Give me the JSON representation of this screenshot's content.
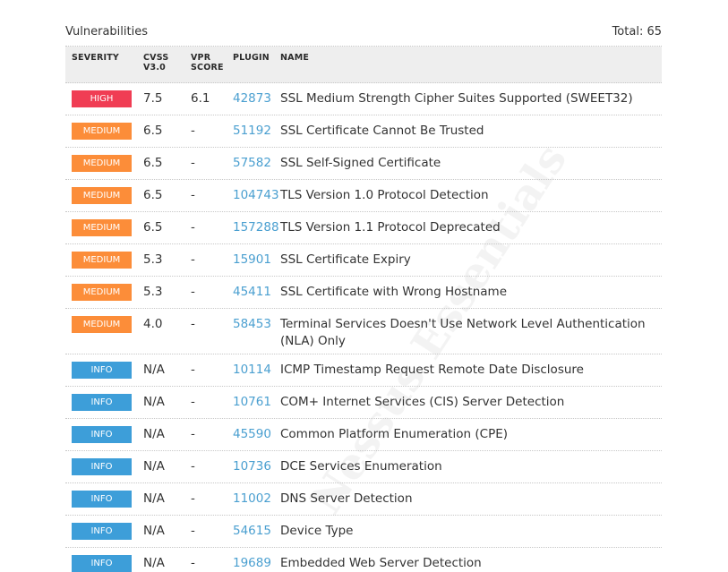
{
  "section": {
    "title": "Vulnerabilities",
    "total": "Total: 65"
  },
  "columns": {
    "severity": "SEVERITY",
    "cvss_l1": "CVSS",
    "cvss_l2": "V3.0",
    "vpr_l1": "VPR",
    "vpr_l2": "SCORE",
    "plugin": "PLUGIN",
    "name": "NAME"
  },
  "watermark": "Nessus Essentials",
  "colors": {
    "high": "#f03d54",
    "medium": "#fc8d39",
    "info": "#3d9ed9",
    "plugin_link": "#4a9fd0"
  },
  "rows": [
    {
      "severity": "HIGH",
      "level": "high",
      "cvss": "7.5",
      "vpr": "6.1",
      "plugin": "42873",
      "name": "SSL Medium Strength Cipher Suites Supported (SWEET32)"
    },
    {
      "severity": "MEDIUM",
      "level": "medium",
      "cvss": "6.5",
      "vpr": "-",
      "plugin": "51192",
      "name": "SSL Certificate Cannot Be Trusted"
    },
    {
      "severity": "MEDIUM",
      "level": "medium",
      "cvss": "6.5",
      "vpr": "-",
      "plugin": "57582",
      "name": "SSL Self-Signed Certificate"
    },
    {
      "severity": "MEDIUM",
      "level": "medium",
      "cvss": "6.5",
      "vpr": "-",
      "plugin": "104743",
      "name": "TLS Version 1.0 Protocol Detection"
    },
    {
      "severity": "MEDIUM",
      "level": "medium",
      "cvss": "6.5",
      "vpr": "-",
      "plugin": "157288",
      "name": "TLS Version 1.1 Protocol Deprecated"
    },
    {
      "severity": "MEDIUM",
      "level": "medium",
      "cvss": "5.3",
      "vpr": "-",
      "plugin": "15901",
      "name": "SSL Certificate Expiry"
    },
    {
      "severity": "MEDIUM",
      "level": "medium",
      "cvss": "5.3",
      "vpr": "-",
      "plugin": "45411",
      "name": "SSL Certificate with Wrong Hostname"
    },
    {
      "severity": "MEDIUM",
      "level": "medium",
      "cvss": "4.0",
      "vpr": "-",
      "plugin": "58453",
      "name": "Terminal Services Doesn't Use Network Level Authentication (NLA) Only",
      "tall": true
    },
    {
      "severity": "INFO",
      "level": "info",
      "cvss": "N/A",
      "vpr": "-",
      "plugin": "10114",
      "name": "ICMP Timestamp Request Remote Date Disclosure"
    },
    {
      "severity": "INFO",
      "level": "info",
      "cvss": "N/A",
      "vpr": "-",
      "plugin": "10761",
      "name": "COM+ Internet Services (CIS) Server Detection"
    },
    {
      "severity": "INFO",
      "level": "info",
      "cvss": "N/A",
      "vpr": "-",
      "plugin": "45590",
      "name": "Common Platform Enumeration (CPE)"
    },
    {
      "severity": "INFO",
      "level": "info",
      "cvss": "N/A",
      "vpr": "-",
      "plugin": "10736",
      "name": "DCE Services Enumeration"
    },
    {
      "severity": "INFO",
      "level": "info",
      "cvss": "N/A",
      "vpr": "-",
      "plugin": "11002",
      "name": "DNS Server Detection"
    },
    {
      "severity": "INFO",
      "level": "info",
      "cvss": "N/A",
      "vpr": "-",
      "plugin": "54615",
      "name": "Device Type"
    },
    {
      "severity": "INFO",
      "level": "info",
      "cvss": "N/A",
      "vpr": "-",
      "plugin": "19689",
      "name": "Embedded Web Server Detection"
    }
  ]
}
